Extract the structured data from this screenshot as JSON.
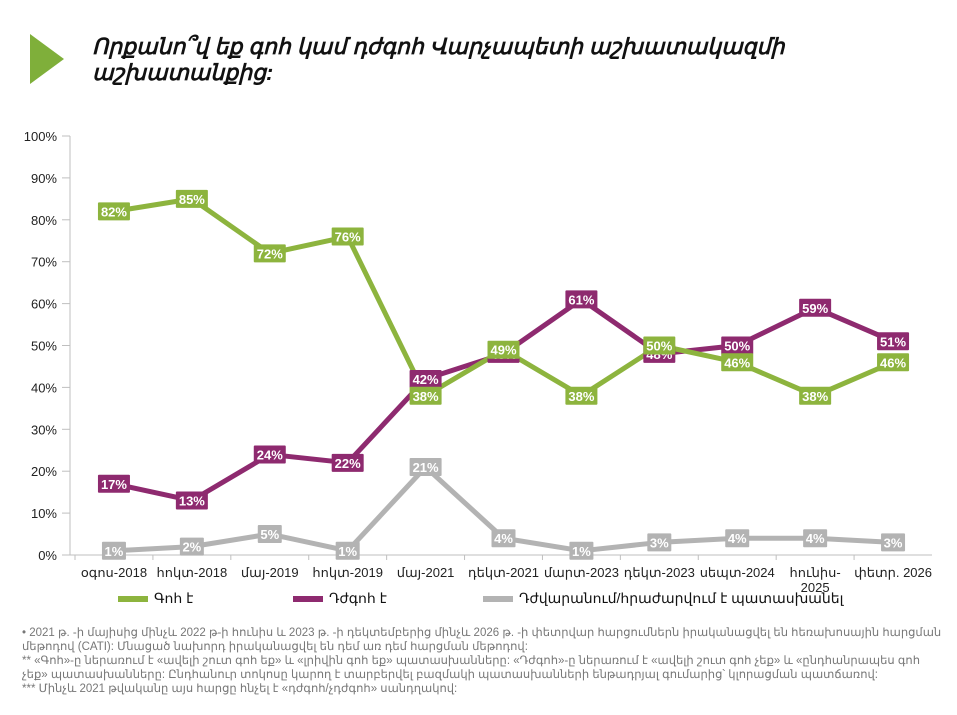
{
  "title": "Որքանո՞վ եք գոհ կամ դժգոհ Վարչապետի աշխատակազմի աշխատանքից:",
  "colors": {
    "satisfied": "#8DB43E",
    "dissatisfied": "#8E2A6F",
    "difficult": "#B3B3B3",
    "marker": "#7FAF3A"
  },
  "chart_data": {
    "type": "line",
    "title": "Որքանո՞վ եք գոհ կամ դժգոհ Վարչապետի աշխատակազմի աշխատանքից:",
    "categories": [
      "օգոս-2018",
      "հոկտ-2018",
      "մայ-2019",
      "հոկտ-2019",
      "մայ-2021",
      "դեկտ-2021",
      "մարտ-2023",
      "դեկտ-2023",
      "սեպտ-2024",
      "հունիս-2025",
      "փետր. 2026"
    ],
    "ylim": [
      0,
      100
    ],
    "yticks": [
      "0%",
      "10%",
      "20%",
      "30%",
      "40%",
      "50%",
      "60%",
      "70%",
      "80%",
      "90%",
      "100%"
    ],
    "series": [
      {
        "name": "Գոհ է",
        "key": "satisfied",
        "values": [
          82,
          85,
          72,
          76,
          38,
          49,
          38,
          50,
          46,
          38,
          46
        ],
        "labels": [
          "82%",
          "85%",
          "72%",
          "76%",
          "38%",
          "49%",
          "38%",
          "50%",
          "46%",
          "38%",
          "46%"
        ]
      },
      {
        "name": "Դժգոհ է",
        "key": "dissatisfied",
        "values": [
          17,
          13,
          24,
          22,
          42,
          48,
          61,
          48,
          50,
          59,
          51
        ],
        "labels": [
          "17%",
          "13%",
          "24%",
          "22%",
          "42%",
          "48%",
          "61%",
          "48%",
          "50%",
          "59%",
          "51%"
        ]
      },
      {
        "name": "Դժվարանում/հրաժարվում է պատասխանել",
        "key": "difficult",
        "values": [
          1,
          2,
          5,
          1,
          21,
          4,
          1,
          3,
          4,
          4,
          3
        ],
        "labels": [
          "1%",
          "2%",
          "5%",
          "1%",
          "21%",
          "4%",
          "1%",
          "3%",
          "4%",
          "4%",
          "3%"
        ]
      }
    ]
  },
  "footnotes": [
    "•   2021 թ. -ի մայիսից մինչև 2022 թ-ի հունիս և 2023 թ. -ի դեկտեմբերից մինչև 2026 թ. -ի փետրվար հարցումներն իրականացվել են հեռախոսային հարցման մեթոդով (CATI): Մնացած նախորդ իրականացվել են դեմ առ դեմ հարցման մեթոդով:",
    "** «Գոհ»-ը ներառում է «ավելի շուտ գոհ եք» և «լրիվին գոհ եք» պատասխանները: «Դժգոհ»-ը ներառում է «ավելի շուտ գոհ չեք» և «ընդհանրապես գոհ չեք» պատասխանները: Ընդհանուր տոկոսը կարող է տարբերվել բազմակի պատասխանների ենթադրյալ գումարից՝ կլորացման պատճառով:",
    "*** Մինչև 2021 թվականը այս հարցը հնչել է «դժգոհ/չդժգոհ» սանդղակով:"
  ]
}
